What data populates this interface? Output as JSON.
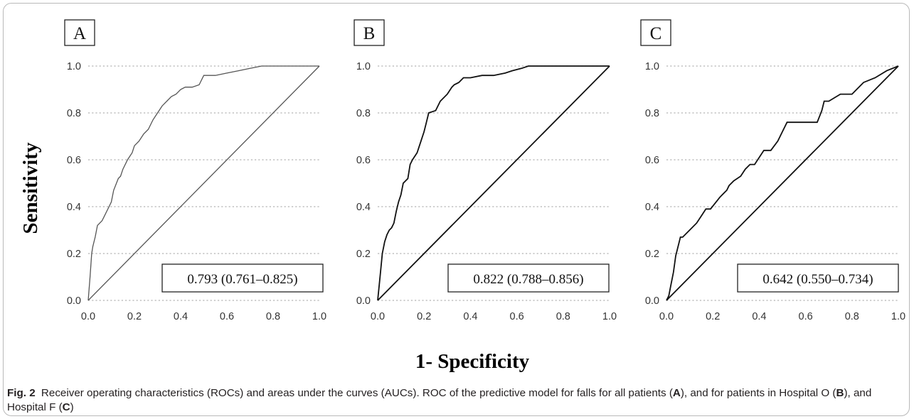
{
  "figure": {
    "ylabel": "Sensitivity",
    "xlabel": "1- Specificity",
    "caption": {
      "label": "Fig. 2",
      "text_1": "Receiver operating characteristics (ROCs) and areas under the curves (AUCs). ROC of the predictive model for falls for all patients (",
      "bold_a": "A",
      "text_2": "), and for patients in Hospital O (",
      "bold_b": "B",
      "text_3": "), and Hospital F (",
      "bold_c": "C",
      "text_4": ")"
    }
  },
  "chart_data": [
    {
      "type": "line",
      "panel": "A",
      "xlim": [
        0,
        1
      ],
      "ylim": [
        0,
        1
      ],
      "ticks": [
        "0.0",
        "0.2",
        "0.4",
        "0.6",
        "0.8",
        "1.0"
      ],
      "grid": "horizontal dotted",
      "annotation": "0.793 (0.761–0.825)",
      "series": [
        {
          "role": "roc",
          "x": [
            0,
            0.008,
            0.015,
            0.02,
            0.03,
            0.04,
            0.05,
            0.06,
            0.07,
            0.08,
            0.09,
            0.1,
            0.11,
            0.13,
            0.14,
            0.15,
            0.17,
            0.19,
            0.2,
            0.22,
            0.24,
            0.26,
            0.28,
            0.3,
            0.32,
            0.34,
            0.36,
            0.38,
            0.4,
            0.42,
            0.45,
            0.48,
            0.5,
            0.55,
            0.6,
            0.65,
            0.7,
            0.75,
            0.8,
            0.9,
            1.0
          ],
          "y": [
            0,
            0.1,
            0.2,
            0.23,
            0.27,
            0.32,
            0.33,
            0.34,
            0.36,
            0.38,
            0.4,
            0.42,
            0.47,
            0.52,
            0.53,
            0.56,
            0.6,
            0.63,
            0.66,
            0.68,
            0.71,
            0.73,
            0.77,
            0.8,
            0.83,
            0.85,
            0.87,
            0.88,
            0.9,
            0.91,
            0.91,
            0.92,
            0.96,
            0.96,
            0.97,
            0.98,
            0.99,
            1.0,
            1.0,
            1.0,
            1.0
          ]
        },
        {
          "role": "reference",
          "x": [
            0,
            1
          ],
          "y": [
            0,
            1
          ]
        }
      ]
    },
    {
      "type": "line",
      "panel": "B",
      "xlim": [
        0,
        1
      ],
      "ylim": [
        0,
        1
      ],
      "ticks": [
        "0.0",
        "0.2",
        "0.4",
        "0.6",
        "0.8",
        "1.0"
      ],
      "grid": "horizontal dotted",
      "annotation": "0.822 (0.788–0.856)",
      "series": [
        {
          "role": "roc",
          "x": [
            0,
            0.01,
            0.02,
            0.03,
            0.04,
            0.05,
            0.06,
            0.07,
            0.08,
            0.09,
            0.1,
            0.11,
            0.13,
            0.14,
            0.15,
            0.17,
            0.18,
            0.2,
            0.21,
            0.22,
            0.25,
            0.27,
            0.3,
            0.32,
            0.33,
            0.35,
            0.37,
            0.4,
            0.45,
            0.5,
            0.55,
            0.58,
            0.62,
            0.65,
            0.7,
            0.8,
            0.9,
            1.0
          ],
          "y": [
            0,
            0.1,
            0.2,
            0.25,
            0.28,
            0.3,
            0.31,
            0.33,
            0.38,
            0.42,
            0.45,
            0.5,
            0.52,
            0.58,
            0.6,
            0.63,
            0.66,
            0.72,
            0.76,
            0.8,
            0.81,
            0.85,
            0.88,
            0.91,
            0.92,
            0.93,
            0.95,
            0.95,
            0.96,
            0.96,
            0.97,
            0.98,
            0.99,
            1.0,
            1.0,
            1.0,
            1.0,
            1.0
          ]
        },
        {
          "role": "reference",
          "x": [
            0,
            1
          ],
          "y": [
            0,
            1
          ]
        }
      ]
    },
    {
      "type": "line",
      "panel": "C",
      "xlim": [
        0,
        1
      ],
      "ylim": [
        0,
        1
      ],
      "ticks": [
        "0.0",
        "0.2",
        "0.4",
        "0.6",
        "0.8",
        "1.0"
      ],
      "grid": "horizontal dotted",
      "annotation": "0.642 (0.550–0.734)",
      "series": [
        {
          "role": "roc",
          "x": [
            0,
            0.01,
            0.02,
            0.03,
            0.04,
            0.05,
            0.06,
            0.07,
            0.1,
            0.13,
            0.15,
            0.17,
            0.19,
            0.23,
            0.24,
            0.26,
            0.27,
            0.29,
            0.32,
            0.34,
            0.36,
            0.38,
            0.42,
            0.45,
            0.48,
            0.5,
            0.52,
            0.6,
            0.65,
            0.67,
            0.68,
            0.7,
            0.75,
            0.8,
            0.82,
            0.85,
            0.9,
            0.95,
            1.0
          ],
          "y": [
            0,
            0.02,
            0.07,
            0.12,
            0.19,
            0.23,
            0.27,
            0.27,
            0.3,
            0.33,
            0.36,
            0.39,
            0.39,
            0.44,
            0.45,
            0.47,
            0.49,
            0.51,
            0.53,
            0.56,
            0.58,
            0.58,
            0.64,
            0.64,
            0.68,
            0.72,
            0.76,
            0.76,
            0.76,
            0.81,
            0.85,
            0.85,
            0.88,
            0.88,
            0.9,
            0.93,
            0.95,
            0.98,
            1.0
          ]
        },
        {
          "role": "reference",
          "x": [
            0,
            1
          ],
          "y": [
            0,
            1
          ]
        }
      ]
    }
  ]
}
